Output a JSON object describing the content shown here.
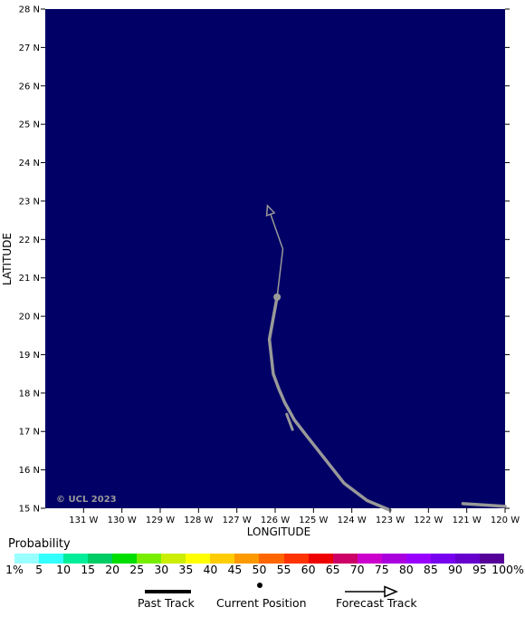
{
  "map": {
    "background_color": "#000066",
    "track_color": "#999999",
    "lat_range": [
      15,
      28
    ],
    "lon_range": [
      -132,
      -120
    ],
    "lat_ticks": [
      {
        "value": 15,
        "label": "15 N"
      },
      {
        "value": 16,
        "label": "16 N"
      },
      {
        "value": 17,
        "label": "17 N"
      },
      {
        "value": 18,
        "label": "18 N"
      },
      {
        "value": 19,
        "label": "19 N"
      },
      {
        "value": 20,
        "label": "20 N"
      },
      {
        "value": 21,
        "label": "21 N"
      },
      {
        "value": 22,
        "label": "22 N"
      },
      {
        "value": 23,
        "label": "23 N"
      },
      {
        "value": 24,
        "label": "24 N"
      },
      {
        "value": 25,
        "label": "25 N"
      },
      {
        "value": 26,
        "label": "26 N"
      },
      {
        "value": 27,
        "label": "27 N"
      },
      {
        "value": 28,
        "label": "28 N"
      }
    ],
    "lon_ticks": [
      {
        "value": -131,
        "label": "131 W"
      },
      {
        "value": -130,
        "label": "130 W"
      },
      {
        "value": -129,
        "label": "129 W"
      },
      {
        "value": -128,
        "label": "128 W"
      },
      {
        "value": -127,
        "label": "127 W"
      },
      {
        "value": -126,
        "label": "126 W"
      },
      {
        "value": -125,
        "label": "125 W"
      },
      {
        "value": -124,
        "label": "124 W"
      },
      {
        "value": -123,
        "label": "123 W"
      },
      {
        "value": -122,
        "label": "122 W"
      },
      {
        "value": -121,
        "label": "121 W"
      },
      {
        "value": -120,
        "label": "120 W"
      }
    ],
    "x_label": "LONGITUDE",
    "y_label": "LATITUDE",
    "copyright": "© UCL 2023",
    "past_track": [
      [
        -123.0,
        14.95
      ],
      [
        -123.6,
        15.2
      ],
      [
        -124.2,
        15.65
      ],
      [
        -125.15,
        16.85
      ],
      [
        -125.5,
        17.3
      ],
      [
        -125.75,
        17.75
      ],
      [
        -125.9,
        18.1
      ],
      [
        -126.05,
        18.5
      ],
      [
        -126.15,
        19.4
      ],
      [
        -125.95,
        20.5
      ]
    ],
    "past_track_offshoot": [
      [
        -125.7,
        17.45
      ],
      [
        -125.55,
        17.05
      ]
    ],
    "past_track_east": [
      [
        -121.1,
        15.12
      ],
      [
        -120.0,
        15.05
      ]
    ],
    "current_position": [
      -125.95,
      20.5
    ],
    "forecast_track": [
      [
        -125.95,
        20.5
      ],
      [
        -125.8,
        21.75
      ],
      [
        -126.2,
        22.88
      ]
    ]
  },
  "legend": {
    "title": "Probability",
    "colors": [
      "#99ffff",
      "#33ffff",
      "#00ee99",
      "#00cc66",
      "#00dd00",
      "#77ee00",
      "#ccee00",
      "#ffff00",
      "#ffcc00",
      "#ff9900",
      "#ff6600",
      "#ff3300",
      "#ee0000",
      "#cc0066",
      "#cc00cc",
      "#aa00dd",
      "#9900ff",
      "#7700ee",
      "#6600cc",
      "#550099"
    ],
    "labels": [
      "1%",
      "5",
      "10",
      "15",
      "20",
      "25",
      "30",
      "35",
      "40",
      "45",
      "50",
      "55",
      "60",
      "65",
      "70",
      "75",
      "80",
      "85",
      "90",
      "95",
      "100%"
    ]
  },
  "key": {
    "past_track": "Past Track",
    "current_position": "Current Position",
    "forecast_track": "Forecast Track"
  }
}
